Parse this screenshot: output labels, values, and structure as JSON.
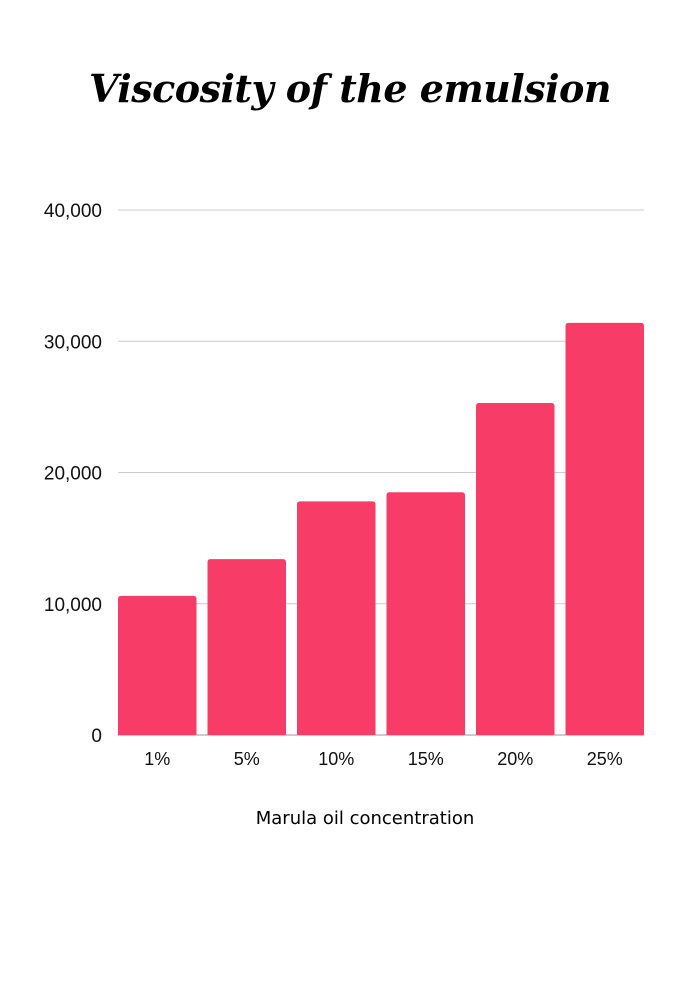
{
  "chart_data": {
    "type": "bar",
    "title": "Viscosity of the emulsion",
    "xlabel": "Marula oil concentration",
    "ylabel": "",
    "categories": [
      "1%",
      "5%",
      "10%",
      "15%",
      "20%",
      "25%"
    ],
    "values": [
      10600,
      13400,
      17800,
      18500,
      25300,
      31400
    ],
    "ylim": [
      0,
      40000
    ],
    "y_ticks": [
      0,
      10000,
      20000,
      30000,
      40000
    ],
    "y_tick_labels": [
      "0",
      "10,000",
      "20,000",
      "30,000",
      "40,000"
    ],
    "grid": true,
    "legend": "none",
    "bar_color": "#f73c68",
    "grid_color": "#cccccc"
  }
}
